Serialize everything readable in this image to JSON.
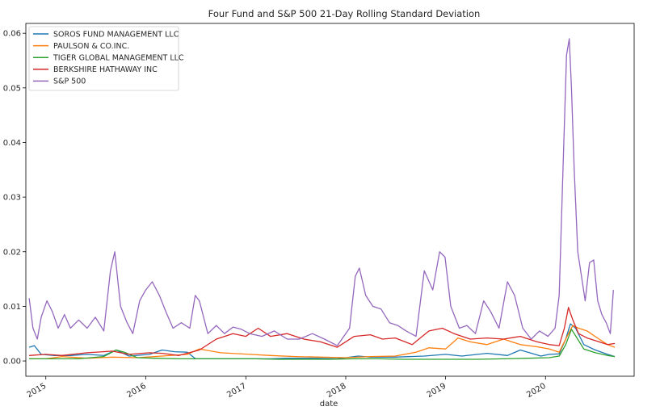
{
  "chart_data": {
    "type": "line",
    "title": "Four Fund and S&P 500 21-Day Rolling Standard Deviation",
    "xlabel": "date",
    "ylabel": "",
    "xlim": [
      "2014-10-20",
      "2020-11-20"
    ],
    "ylim": [
      -0.0028,
      0.0618
    ],
    "x_ticks": [
      "2015-01-01",
      "2016-01-01",
      "2017-01-01",
      "2018-01-01",
      "2019-01-01",
      "2020-01-01"
    ],
    "x_tick_labels": [
      "2015",
      "2016",
      "2017",
      "2018",
      "2019",
      "2020"
    ],
    "y_ticks": [
      0.0,
      0.01,
      0.02,
      0.03,
      0.04,
      0.05,
      0.06
    ],
    "y_tick_labels": [
      "0.00",
      "0.01",
      "0.02",
      "0.03",
      "0.04",
      "0.05",
      "0.06"
    ],
    "grid": false,
    "legend_position": "top-left",
    "series": [
      {
        "name": "SOROS FUND MANAGEMENT LLC",
        "color": "#1f77b4",
        "x": [
          "2014-11-01",
          "2014-11-20",
          "2014-12-15",
          "2015-02-01",
          "2015-04-01",
          "2015-06-01",
          "2015-08-01",
          "2015-09-15",
          "2015-11-01",
          "2016-01-15",
          "2016-03-01",
          "2016-04-15",
          "2016-06-01",
          "2016-07-01",
          "2016-09-01",
          "2016-11-15",
          "2017-01-15",
          "2017-04-01",
          "2017-06-01",
          "2017-09-01",
          "2017-12-01",
          "2018-02-15",
          "2018-04-01",
          "2018-07-01",
          "2018-10-15",
          "2019-01-01",
          "2019-03-01",
          "2019-06-01",
          "2019-08-15",
          "2019-10-01",
          "2019-12-15",
          "2020-01-15",
          "2020-02-20",
          "2020-03-15",
          "2020-04-01",
          "2020-04-20",
          "2020-05-20",
          "2020-07-01",
          "2020-08-15",
          "2020-09-10"
        ],
        "y": [
          0.0025,
          0.0028,
          0.0012,
          0.001,
          0.001,
          0.0012,
          0.001,
          0.002,
          0.0009,
          0.0012,
          0.002,
          0.0017,
          0.0016,
          0.0004,
          0.0004,
          0.0004,
          0.0004,
          0.0004,
          0.0005,
          0.0005,
          0.0004,
          0.0009,
          0.0007,
          0.0007,
          0.0009,
          0.0012,
          0.0009,
          0.0014,
          0.001,
          0.002,
          0.0009,
          0.0012,
          0.0013,
          0.004,
          0.0068,
          0.006,
          0.003,
          0.002,
          0.0012,
          0.0008
        ]
      },
      {
        "name": "PAULSON & CO.INC.",
        "color": "#ff7f0e",
        "x": [
          "2014-11-01",
          "2015-01-01",
          "2015-03-01",
          "2015-06-01",
          "2015-09-01",
          "2015-12-01",
          "2016-03-01",
          "2016-06-01",
          "2016-07-15",
          "2016-10-01",
          "2017-01-15",
          "2017-04-01",
          "2017-07-01",
          "2017-10-01",
          "2018-01-01",
          "2018-04-01",
          "2018-07-01",
          "2018-09-15",
          "2018-11-01",
          "2019-01-01",
          "2019-02-15",
          "2019-04-01",
          "2019-06-01",
          "2019-08-01",
          "2019-10-01",
          "2019-12-01",
          "2020-01-15",
          "2020-02-20",
          "2020-03-20",
          "2020-04-10",
          "2020-05-01",
          "2020-06-01",
          "2020-07-15",
          "2020-08-15",
          "2020-09-10"
        ],
        "y": [
          0.0004,
          0.0004,
          0.0008,
          0.0005,
          0.0007,
          0.0006,
          0.0009,
          0.0012,
          0.0022,
          0.0015,
          0.0012,
          0.001,
          0.0008,
          0.0007,
          0.0006,
          0.0008,
          0.0009,
          0.0016,
          0.0024,
          0.0022,
          0.0042,
          0.0035,
          0.003,
          0.004,
          0.003,
          0.0026,
          0.0022,
          0.0016,
          0.0045,
          0.0065,
          0.006,
          0.0055,
          0.004,
          0.003,
          0.0025
        ]
      },
      {
        "name": "TIGER GLOBAL MANAGEMENT LLC",
        "color": "#2ca02c",
        "x": [
          "2014-11-01",
          "2015-02-01",
          "2015-05-01",
          "2015-08-01",
          "2015-09-15",
          "2015-10-15",
          "2015-12-01",
          "2016-02-01",
          "2016-05-01",
          "2016-08-01",
          "2016-11-01",
          "2017-02-01",
          "2017-05-01",
          "2017-08-01",
          "2017-11-01",
          "2018-02-01",
          "2018-05-01",
          "2018-08-01",
          "2018-11-01",
          "2019-02-01",
          "2019-05-01",
          "2019-08-01",
          "2019-11-01",
          "2020-01-15",
          "2020-02-20",
          "2020-03-15",
          "2020-04-05",
          "2020-04-25",
          "2020-05-20",
          "2020-07-01",
          "2020-08-15",
          "2020-09-10"
        ],
        "y": [
          0.0004,
          0.0004,
          0.0004,
          0.0008,
          0.002,
          0.0016,
          0.0006,
          0.0005,
          0.0004,
          0.0004,
          0.0004,
          0.0004,
          0.0003,
          0.0003,
          0.0003,
          0.0004,
          0.0004,
          0.0003,
          0.0003,
          0.0003,
          0.0003,
          0.0004,
          0.0005,
          0.0006,
          0.0009,
          0.003,
          0.0058,
          0.0042,
          0.0022,
          0.0015,
          0.001,
          0.0008
        ]
      },
      {
        "name": "BERKSHIRE HATHAWAY INC",
        "color": "#d62728",
        "x": [
          "2014-11-01",
          "2015-01-01",
          "2015-03-01",
          "2015-06-01",
          "2015-09-01",
          "2015-11-01",
          "2016-01-15",
          "2016-03-01",
          "2016-05-01",
          "2016-07-15",
          "2016-09-15",
          "2016-11-15",
          "2017-01-01",
          "2017-02-15",
          "2017-04-01",
          "2017-06-01",
          "2017-08-01",
          "2017-10-01",
          "2017-12-01",
          "2018-02-01",
          "2018-04-01",
          "2018-05-15",
          "2018-07-01",
          "2018-09-01",
          "2018-11-01",
          "2018-12-20",
          "2019-02-01",
          "2019-04-01",
          "2019-06-01",
          "2019-08-01",
          "2019-10-01",
          "2019-12-01",
          "2020-01-15",
          "2020-02-20",
          "2020-03-10",
          "2020-03-25",
          "2020-04-10",
          "2020-05-01",
          "2020-06-01",
          "2020-07-15",
          "2020-08-15",
          "2020-09-10"
        ],
        "y": [
          0.001,
          0.0012,
          0.001,
          0.0015,
          0.0018,
          0.0012,
          0.0015,
          0.0014,
          0.001,
          0.002,
          0.004,
          0.005,
          0.0045,
          0.006,
          0.0045,
          0.005,
          0.004,
          0.0035,
          0.0025,
          0.0045,
          0.0048,
          0.004,
          0.0042,
          0.003,
          0.0055,
          0.006,
          0.005,
          0.004,
          0.0042,
          0.004,
          0.0045,
          0.0035,
          0.003,
          0.0028,
          0.006,
          0.0098,
          0.0075,
          0.005,
          0.0042,
          0.0035,
          0.003,
          0.0032
        ]
      },
      {
        "name": "S&P 500",
        "color": "#9467bd",
        "x": [
          "2014-11-01",
          "2014-11-15",
          "2014-12-01",
          "2014-12-15",
          "2015-01-05",
          "2015-01-25",
          "2015-02-15",
          "2015-03-10",
          "2015-04-01",
          "2015-05-01",
          "2015-06-01",
          "2015-07-01",
          "2015-08-01",
          "2015-08-25",
          "2015-09-10",
          "2015-10-01",
          "2015-10-25",
          "2015-11-15",
          "2015-12-10",
          "2016-01-01",
          "2016-01-25",
          "2016-02-20",
          "2016-03-15",
          "2016-04-10",
          "2016-05-10",
          "2016-06-10",
          "2016-06-30",
          "2016-07-15",
          "2016-08-15",
          "2016-09-15",
          "2016-10-15",
          "2016-11-15",
          "2016-12-15",
          "2017-01-15",
          "2017-03-01",
          "2017-04-15",
          "2017-06-01",
          "2017-07-15",
          "2017-09-01",
          "2017-10-15",
          "2017-12-01",
          "2018-01-15",
          "2018-02-05",
          "2018-02-20",
          "2018-03-15",
          "2018-04-10",
          "2018-05-10",
          "2018-06-10",
          "2018-07-10",
          "2018-08-10",
          "2018-09-15",
          "2018-10-15",
          "2018-11-15",
          "2018-12-10",
          "2018-12-30",
          "2019-01-20",
          "2019-02-20",
          "2019-03-20",
          "2019-04-20",
          "2019-05-20",
          "2019-06-15",
          "2019-07-15",
          "2019-08-15",
          "2019-09-10",
          "2019-10-10",
          "2019-11-10",
          "2019-12-10",
          "2020-01-10",
          "2020-02-05",
          "2020-02-20",
          "2020-03-05",
          "2020-03-18",
          "2020-03-28",
          "2020-04-05",
          "2020-04-15",
          "2020-04-28",
          "2020-05-10",
          "2020-05-25",
          "2020-06-10",
          "2020-06-25",
          "2020-07-10",
          "2020-07-25",
          "2020-08-10",
          "2020-08-25",
          "2020-09-05"
        ],
        "y": [
          0.0115,
          0.006,
          0.004,
          0.008,
          0.011,
          0.009,
          0.006,
          0.0085,
          0.006,
          0.0075,
          0.006,
          0.008,
          0.0055,
          0.0165,
          0.02,
          0.01,
          0.007,
          0.005,
          0.011,
          0.013,
          0.0145,
          0.012,
          0.009,
          0.006,
          0.007,
          0.006,
          0.012,
          0.011,
          0.005,
          0.0065,
          0.005,
          0.0062,
          0.0058,
          0.005,
          0.0045,
          0.0055,
          0.004,
          0.004,
          0.005,
          0.004,
          0.0028,
          0.006,
          0.0155,
          0.017,
          0.012,
          0.01,
          0.0095,
          0.007,
          0.0065,
          0.0055,
          0.0045,
          0.0165,
          0.013,
          0.02,
          0.019,
          0.01,
          0.006,
          0.0065,
          0.005,
          0.011,
          0.009,
          0.006,
          0.0145,
          0.012,
          0.006,
          0.004,
          0.0055,
          0.0045,
          0.006,
          0.012,
          0.035,
          0.056,
          0.059,
          0.05,
          0.035,
          0.02,
          0.016,
          0.011,
          0.018,
          0.0185,
          0.011,
          0.0085,
          0.007,
          0.005,
          0.013
        ]
      }
    ]
  }
}
